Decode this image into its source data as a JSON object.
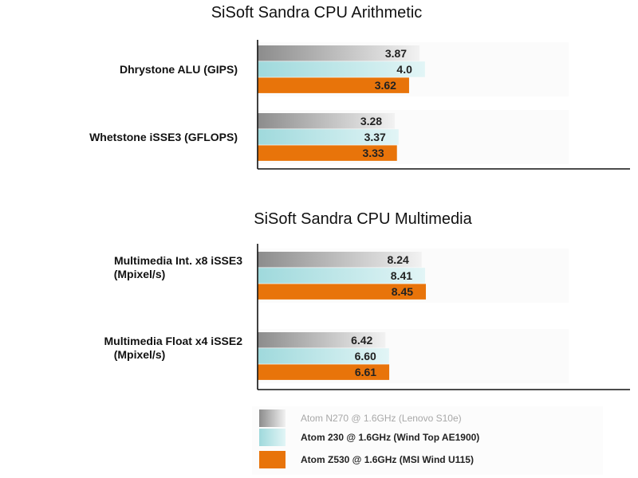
{
  "chart_data": [
    {
      "type": "bar",
      "orientation": "horizontal",
      "title": "SiSoft Sandra CPU Arithmetic",
      "categories": [
        [
          "Dhrystone ALU (GIPS)"
        ],
        [
          "Whetstone iSSE3 (GFLOPS)"
        ]
      ],
      "series": [
        {
          "name": "Atom N270 @ 1.6GHz (Lenovo S10e)",
          "values": [
            3.87,
            3.28
          ],
          "labels": [
            "3.87",
            "3.28"
          ]
        },
        {
          "name": "Atom 230 @ 1.6GHz (Wind Top AE1900)",
          "values": [
            4.0,
            3.37
          ],
          "labels": [
            "4.0",
            "3.37"
          ]
        },
        {
          "name": "Atom Z530 @ 1.6GHz (MSI Wind U115)",
          "values": [
            3.62,
            3.33
          ],
          "labels": [
            "3.62",
            "3.33"
          ]
        }
      ],
      "xlim": [
        0,
        8.9
      ]
    },
    {
      "type": "bar",
      "orientation": "horizontal",
      "title": "SiSoft Sandra CPU Multimedia",
      "categories": [
        [
          "Multimedia Int. x8 iSSE3",
          "(Mpixel/s)"
        ],
        [
          "Multimedia Float x4 iSSE2",
          "(Mpixel/s)"
        ]
      ],
      "series": [
        {
          "name": "Atom N270 @ 1.6GHz (Lenovo S10e)",
          "values": [
            8.24,
            6.42
          ],
          "labels": [
            "8.24",
            "6.42"
          ]
        },
        {
          "name": "Atom 230 @ 1.6GHz (Wind Top AE1900)",
          "values": [
            8.41,
            6.6
          ],
          "labels": [
            "8.41",
            "6.60"
          ]
        },
        {
          "name": "Atom Z530 @ 1.6GHz (MSI Wind U115)",
          "values": [
            8.45,
            6.61
          ],
          "labels": [
            "8.45",
            "6.61"
          ]
        }
      ],
      "xlim": [
        0,
        18.7
      ]
    }
  ],
  "legend": {
    "placement": "bottom",
    "entries": [
      {
        "label": "Atom N270 @ 1.6GHz (Lenovo S10e)",
        "style": "gray-gradient"
      },
      {
        "label": "Atom 230 @ 1.6GHz (Wind Top AE1900)",
        "style": "cyan-gradient"
      },
      {
        "label": "Atom Z530 @ 1.6GHz (MSI Wind U115)",
        "style": "orange"
      }
    ]
  },
  "colors": {
    "gray_dark": "#8c8c8c",
    "gray_light": "#f2f2f2",
    "cyan_dark": "#9fd9dc",
    "cyan_light": "#e2f5f6",
    "orange": "#e8740a"
  }
}
